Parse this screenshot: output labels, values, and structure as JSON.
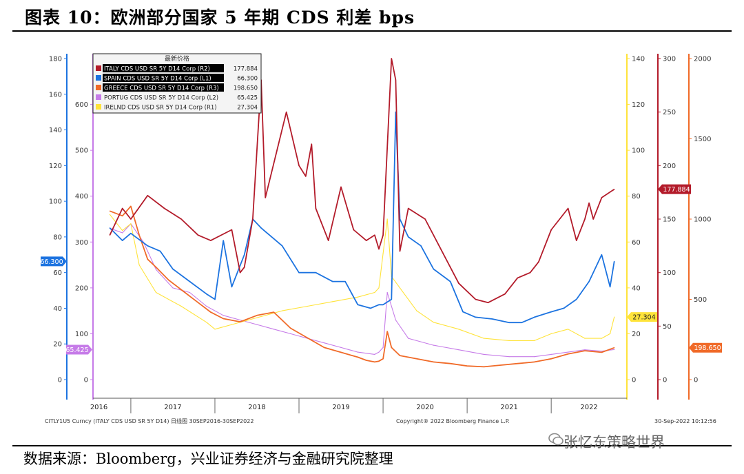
{
  "header": {
    "title": "图表 10：欧洲部分国家 5 年期 CDS 利差  bps"
  },
  "footer": {
    "source": "数据来源：Bloomberg，兴业证券经济与金融研究院整理",
    "brand": "张忆东策略世界",
    "left_note": "CITLY1U5 Curncy (ITALY CDS USD SR 5Y D14)  日线图  30SEP2016-30SEP2022",
    "copyright": "Copyright® 2022 Bloomberg Finance L.P.",
    "timestamp": "30-Sep-2022 10:12:56"
  },
  "colors": {
    "italy": "#b31b2a",
    "spain": "#1c73e0",
    "greece": "#f06a28",
    "portug": "#c67be8",
    "ireland": "#ffe33a"
  },
  "chart_data": {
    "type": "line",
    "x_labels": [
      "2016",
      "2017",
      "2018",
      "2019",
      "2020",
      "2021",
      "2022"
    ],
    "legend": {
      "header": "最新价格",
      "entries": [
        {
          "label": "ITALY CDS USD SR 5Y D14 Corp  (R2)",
          "value": "177.884",
          "highlight": true
        },
        {
          "label": "SPAIN CDS USD SR 5Y D14 Corp  (L1)",
          "value": "66.300",
          "highlight": true
        },
        {
          "label": "GREECE CDS USD SR 5Y D14 Corp  (R3)",
          "value": "198.650",
          "highlight": true
        },
        {
          "label": "PORTUG CDS USD SR 5Y D14 Corp  (L2)",
          "value": "65.425",
          "highlight": false
        },
        {
          "label": "IRELND CDS USD SR 5Y D14 Corp  (R1)",
          "value": "27.304",
          "highlight": false
        }
      ]
    },
    "axes": {
      "L1": {
        "ticks": [
          "0",
          "20",
          "40",
          "60",
          "80",
          "100",
          "120",
          "140",
          "160",
          "180"
        ],
        "range": [
          0,
          180
        ]
      },
      "L2": {
        "ticks": [
          "0",
          "100",
          "200",
          "300",
          "400",
          "500",
          "600"
        ],
        "range": [
          0,
          700
        ]
      },
      "R1": {
        "ticks": [
          "0",
          "20",
          "40",
          "60",
          "80",
          "100",
          "120",
          "140"
        ],
        "range": [
          0,
          140
        ]
      },
      "R2": {
        "ticks": [
          "0",
          "50",
          "100",
          "150",
          "200",
          "250",
          "300"
        ],
        "range": [
          0,
          300
        ]
      },
      "R3": {
        "ticks": [
          "0",
          "500",
          "1000",
          "1500",
          "2000"
        ],
        "range": [
          0,
          2000
        ]
      }
    },
    "value_tags": {
      "spain": "66.300",
      "portug": "65.425",
      "ireland": "27.304",
      "italy": "177.884",
      "greece": "198.650"
    },
    "series": [
      {
        "key": "italy",
        "axis": "R2",
        "name": "ITALY CDS USD SR 5Y D14 Corp",
        "x": [
          2016.75,
          2016.9,
          2017.0,
          2017.2,
          2017.4,
          2017.6,
          2017.8,
          2017.95,
          2018.2,
          2018.3,
          2018.35,
          2018.45,
          2018.55,
          2018.6,
          2018.85,
          2019.0,
          2019.08,
          2019.15,
          2019.2,
          2019.35,
          2019.5,
          2019.65,
          2019.8,
          2019.9,
          2019.95,
          2020.0,
          2020.1,
          2020.15,
          2020.2,
          2020.3,
          2020.5,
          2020.9,
          2021.1,
          2021.25,
          2021.45,
          2021.6,
          2021.75,
          2021.85,
          2022.0,
          2022.1,
          2022.2,
          2022.3,
          2022.4,
          2022.45,
          2022.5,
          2022.6,
          2022.75
        ],
        "y": [
          135,
          160,
          150,
          172,
          160,
          150,
          135,
          130,
          140,
          100,
          105,
          150,
          280,
          170,
          250,
          200,
          190,
          220,
          160,
          130,
          180,
          140,
          130,
          135,
          122,
          135,
          300,
          280,
          120,
          160,
          150,
          90,
          75,
          72,
          80,
          95,
          100,
          110,
          140,
          150,
          160,
          130,
          150,
          165,
          150,
          170,
          177.884
        ]
      },
      {
        "key": "spain",
        "axis": "L1",
        "name": "SPAIN CDS USD SR 5Y D14 Corp",
        "x": [
          2016.75,
          2016.9,
          2017.0,
          2017.2,
          2017.35,
          2017.5,
          2017.7,
          2017.9,
          2018.0,
          2018.1,
          2018.2,
          2018.35,
          2018.45,
          2018.55,
          2018.8,
          2019.0,
          2019.2,
          2019.4,
          2019.55,
          2019.7,
          2019.85,
          2019.95,
          2020.0,
          2020.1,
          2020.15,
          2020.2,
          2020.3,
          2020.45,
          2020.6,
          2020.8,
          2020.95,
          2021.1,
          2021.3,
          2021.5,
          2021.65,
          2021.8,
          2022.0,
          2022.15,
          2022.3,
          2022.45,
          2022.6,
          2022.7,
          2022.75
        ],
        "y": [
          85,
          78,
          82,
          75,
          72,
          62,
          55,
          48,
          45,
          78,
          52,
          70,
          90,
          85,
          75,
          60,
          60,
          55,
          55,
          42,
          40,
          42,
          42,
          45,
          150,
          90,
          80,
          75,
          62,
          55,
          38,
          35,
          34,
          32,
          32,
          35,
          38,
          40,
          45,
          55,
          70,
          52,
          66.3
        ]
      },
      {
        "key": "greece",
        "axis": "R3",
        "name": "GREECE CDS USD SR 5Y D14 Corp",
        "x": [
          2016.75,
          2016.9,
          2017.0,
          2017.1,
          2017.2,
          2017.3,
          2017.45,
          2017.6,
          2017.8,
          2017.95,
          2018.1,
          2018.3,
          2018.5,
          2018.7,
          2018.9,
          2019.1,
          2019.3,
          2019.5,
          2019.7,
          2019.8,
          2019.9,
          2019.95,
          2020.0,
          2020.05,
          2020.1,
          2020.2,
          2020.4,
          2020.6,
          2020.8,
          2021.0,
          2021.2,
          2021.4,
          2021.6,
          2021.8,
          2022.0,
          2022.2,
          2022.4,
          2022.6,
          2022.75
        ],
        "y": [
          1050,
          1020,
          1080,
          900,
          750,
          700,
          620,
          560,
          480,
          420,
          380,
          360,
          400,
          420,
          320,
          260,
          200,
          170,
          140,
          120,
          110,
          115,
          130,
          300,
          200,
          150,
          130,
          110,
          100,
          85,
          80,
          90,
          100,
          110,
          130,
          160,
          180,
          170,
          198.65
        ]
      },
      {
        "key": "portug",
        "axis": "L2",
        "name": "PORTUG CDS USD SR 5Y D14 Corp",
        "x": [
          2016.75,
          2016.9,
          2017.0,
          2017.15,
          2017.3,
          2017.5,
          2017.7,
          2017.9,
          2018.1,
          2018.3,
          2018.5,
          2018.7,
          2018.9,
          2019.1,
          2019.3,
          2019.5,
          2019.7,
          2019.9,
          2019.95,
          2020.0,
          2020.05,
          2020.15,
          2020.3,
          2020.6,
          2020.9,
          2021.2,
          2021.5,
          2021.8,
          2022.0,
          2022.2,
          2022.4,
          2022.6,
          2022.75
        ],
        "y": [
          330,
          320,
          340,
          300,
          240,
          200,
          190,
          160,
          140,
          130,
          120,
          110,
          100,
          90,
          80,
          70,
          60,
          55,
          60,
          70,
          190,
          130,
          90,
          75,
          65,
          55,
          50,
          50,
          55,
          60,
          65,
          62,
          65.425
        ]
      },
      {
        "key": "ireland",
        "axis": "R1",
        "name": "IRELND CDS USD SR 5Y D14 Corp",
        "x": [
          2016.75,
          2016.9,
          2017.0,
          2017.1,
          2017.3,
          2017.6,
          2017.9,
          2018.0,
          2018.2,
          2018.5,
          2018.8,
          2019.1,
          2019.4,
          2019.7,
          2019.9,
          2019.95,
          2020.0,
          2020.05,
          2020.1,
          2020.2,
          2020.4,
          2020.6,
          2020.9,
          2021.2,
          2021.5,
          2021.8,
          2022.0,
          2022.2,
          2022.4,
          2022.6,
          2022.7,
          2022.75
        ],
        "y": [
          72,
          65,
          68,
          50,
          38,
          32,
          25,
          22,
          24,
          27,
          30,
          32,
          34,
          36,
          38,
          40,
          55,
          70,
          45,
          40,
          30,
          25,
          22,
          18,
          17,
          17,
          20,
          22,
          18,
          18,
          20,
          27.304
        ]
      }
    ]
  }
}
